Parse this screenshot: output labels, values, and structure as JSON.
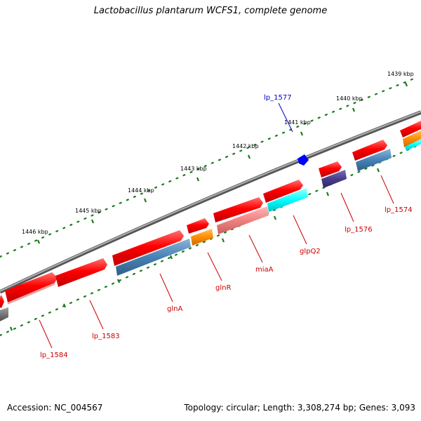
{
  "title": "Lactobacillus plantarum WCFS1, complete genome",
  "footer": {
    "accession": "Accession: NC_004567",
    "topology": "Topology: circular; Length: 3,308,274 bp; Genes: 3,093"
  },
  "ruler": {
    "labels": [
      "1439 kbp",
      "1440 kbp",
      "1441 kbp",
      "1442 kbp",
      "1443 kbp",
      "1444 kbp",
      "1445 kbp",
      "1446 kbp"
    ]
  },
  "genes": {
    "lp_1574": "lp_1574",
    "lp_1576": "lp_1576",
    "lp_1577": "lp_1577",
    "glpQ2": "glpQ2",
    "miaA": "miaA",
    "glnR": "glnR",
    "glnA": "glnA",
    "lp_1583": "lp_1583",
    "lp_1584": "lp_1584"
  },
  "colors": {
    "backbone": "#808080",
    "gene_red": "#ff0000",
    "label_red": "#cc0000",
    "label_blue": "#0000cc",
    "steelblue": "#4682b4",
    "orange": "#ff8c00",
    "cyan": "#00ffff",
    "salmon": "#f08080",
    "slateblue": "#483d8b",
    "tick_green": "#1a7a1a",
    "grey": "#696969",
    "blue": "#0000ff"
  }
}
